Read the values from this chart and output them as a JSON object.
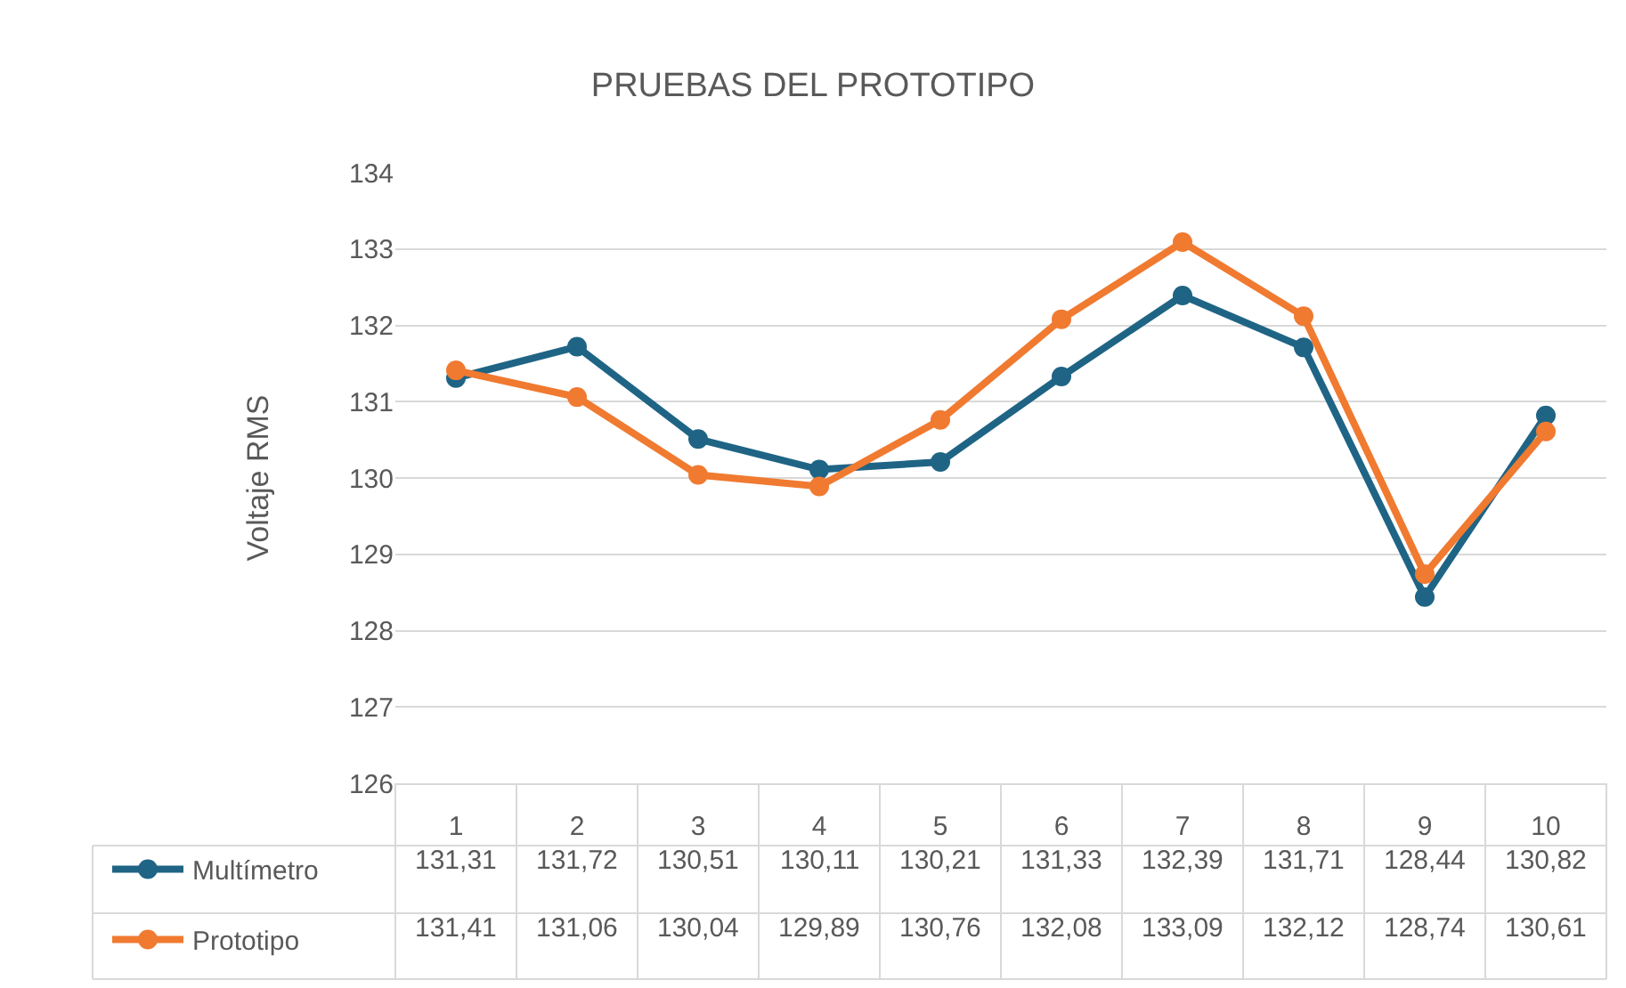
{
  "chart_data": {
    "type": "line",
    "title": "PRUEBAS DEL PROTOTIPO",
    "ylabel": "Voltaje RMS",
    "categories": [
      "1",
      "2",
      "3",
      "4",
      "5",
      "6",
      "7",
      "8",
      "9",
      "10"
    ],
    "series": [
      {
        "name": "Multímetro",
        "color": "#1f6485",
        "values": [
          131.31,
          131.72,
          130.51,
          130.11,
          130.21,
          131.33,
          132.39,
          131.71,
          128.44,
          130.82
        ],
        "value_labels": [
          "131,31",
          "131,72",
          "130,51",
          "130,11",
          "130,21",
          "131,33",
          "132,39",
          "131,71",
          "128,44",
          "130,82"
        ]
      },
      {
        "name": "Prototipo",
        "color": "#f07a30",
        "values": [
          131.41,
          131.06,
          130.04,
          129.89,
          130.76,
          132.08,
          133.09,
          132.12,
          128.74,
          130.61
        ],
        "value_labels": [
          "131,41",
          "131,06",
          "130,04",
          "129,89",
          "130,76",
          "132,08",
          "133,09",
          "132,12",
          "128,74",
          "130,61"
        ]
      }
    ],
    "ylim": [
      126,
      134
    ],
    "yticks": [
      126,
      127,
      128,
      129,
      130,
      131,
      132,
      133,
      134
    ],
    "grid": "y",
    "legend": "bottom",
    "marker": "circle",
    "line_style": "solid"
  }
}
